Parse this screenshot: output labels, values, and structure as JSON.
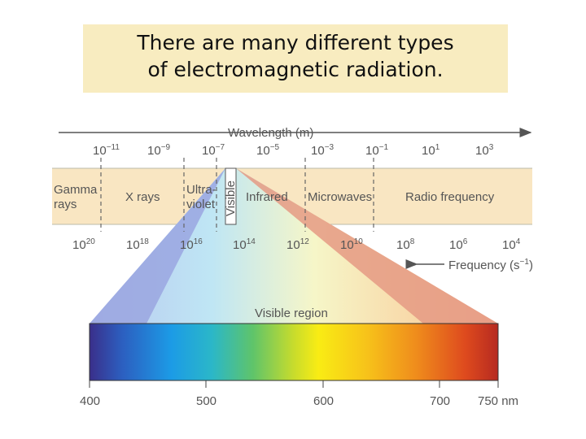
{
  "title": {
    "line1": "There are many different types",
    "line2": "of electromagnetic radiation."
  },
  "wavelength_axis": {
    "label": "Wavelength (m)",
    "ticks": [
      {
        "base": "10",
        "exp": "−11"
      },
      {
        "base": "10",
        "exp": "−9"
      },
      {
        "base": "10",
        "exp": "−7"
      },
      {
        "base": "10",
        "exp": "−5"
      },
      {
        "base": "10",
        "exp": "−3"
      },
      {
        "base": "10",
        "exp": "−1"
      },
      {
        "base": "10",
        "exp": "1"
      },
      {
        "base": "10",
        "exp": "3"
      }
    ]
  },
  "regions": {
    "gamma": {
      "line1": "Gamma",
      "line2": "rays"
    },
    "xrays": "X rays",
    "ultraviolet": {
      "line1": "Ultra-",
      "line2": "violet"
    },
    "visible": "Visible",
    "infrared": "Infrared",
    "microwaves": "Microwaves",
    "radio": "Radio frequency"
  },
  "frequency_axis": {
    "label": "Frequency (s",
    "label_exp": "−1",
    "label_close": ")",
    "ticks": [
      {
        "base": "10",
        "exp": "20"
      },
      {
        "base": "10",
        "exp": "18"
      },
      {
        "base": "10",
        "exp": "16"
      },
      {
        "base": "10",
        "exp": "14"
      },
      {
        "base": "10",
        "exp": "12"
      },
      {
        "base": "10",
        "exp": "10"
      },
      {
        "base": "10",
        "exp": "8"
      },
      {
        "base": "10",
        "exp": "6"
      },
      {
        "base": "10",
        "exp": "4"
      }
    ]
  },
  "visible_region": {
    "label": "Visible region",
    "ticks": [
      "400",
      "500",
      "600",
      "700",
      "750 nm"
    ]
  },
  "colors": {
    "band": "#f9e6c2",
    "axis": "#555555",
    "violet_wedge": "#9aa6e0",
    "red_wedge": "#e59a84"
  }
}
